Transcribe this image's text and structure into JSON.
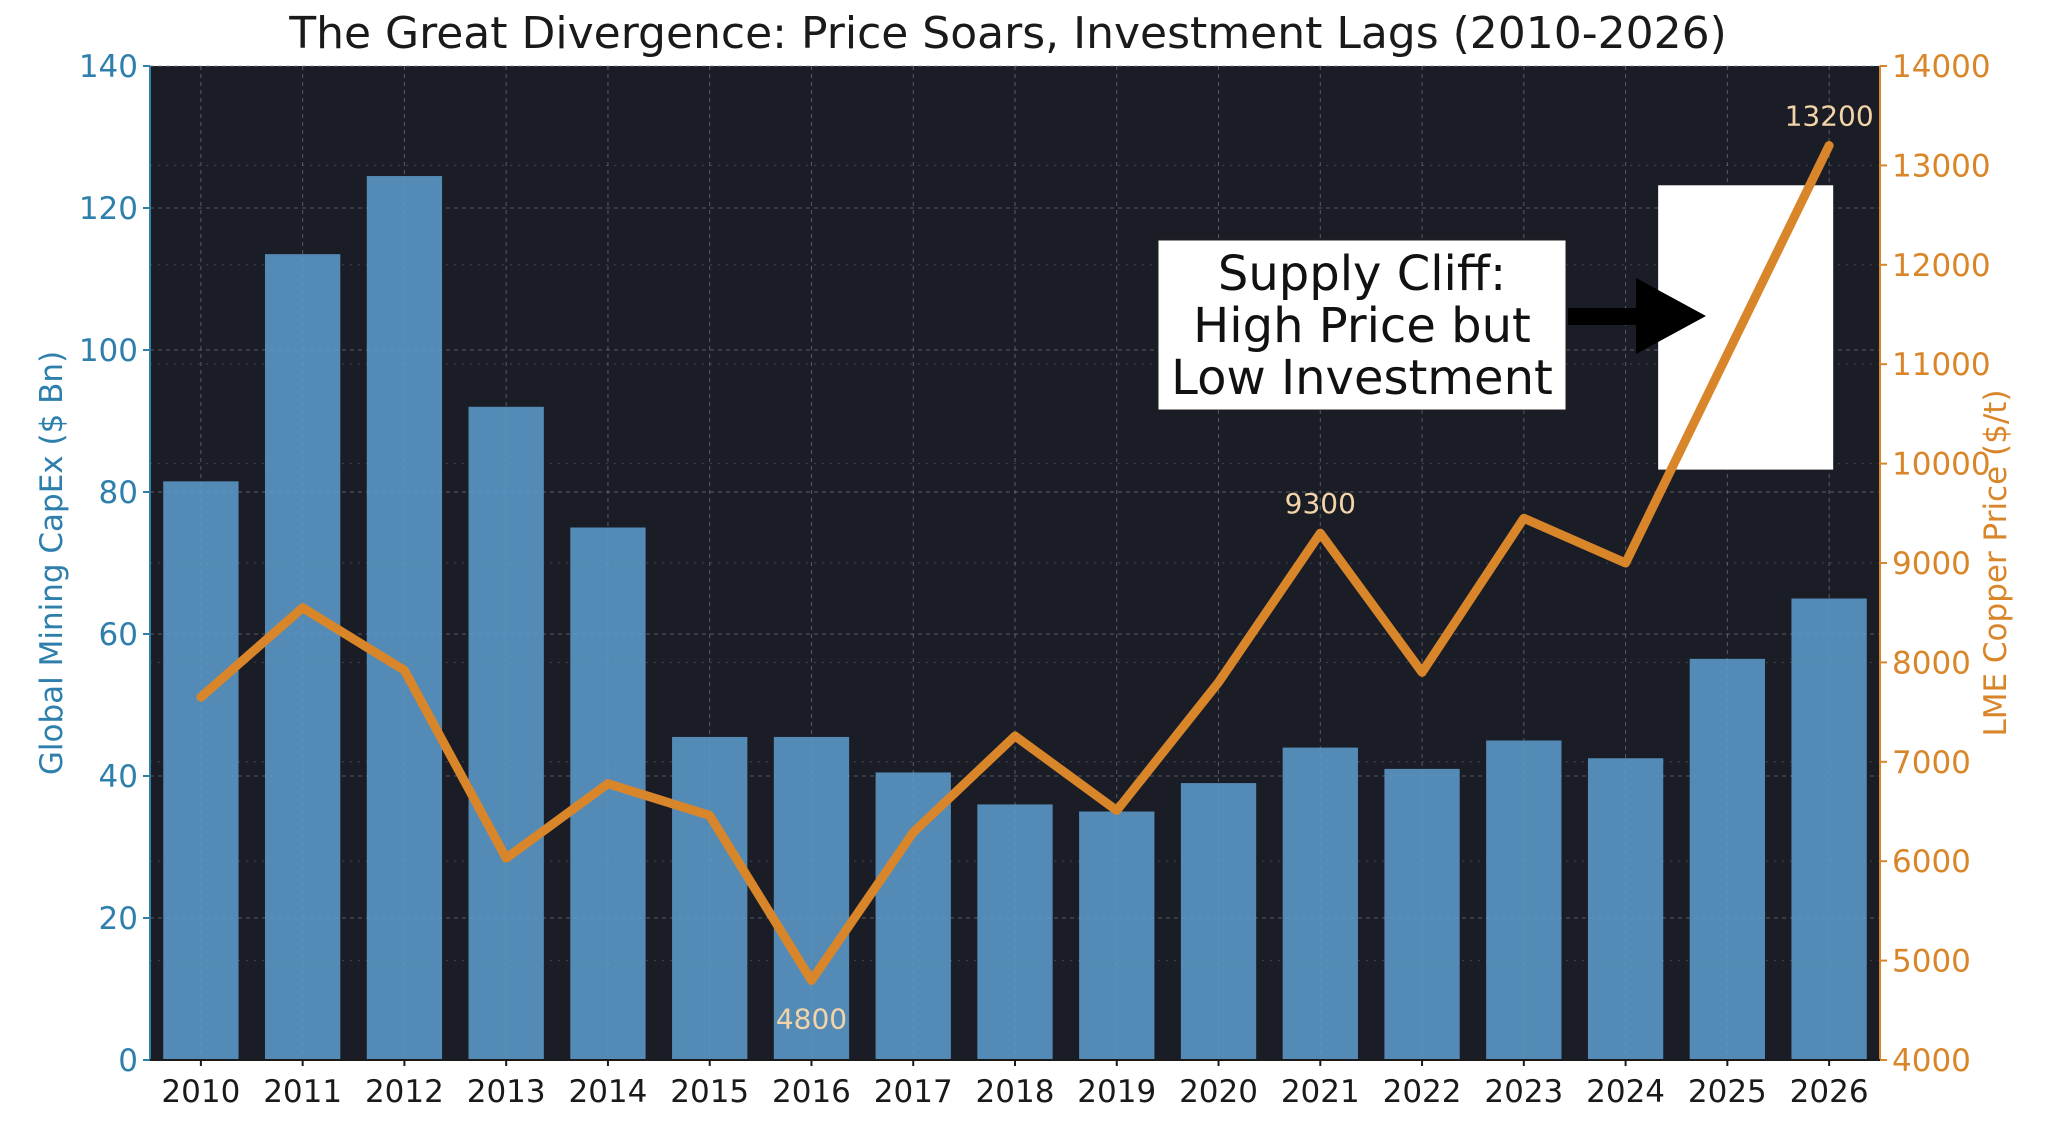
{
  "chart_data": {
    "type": "bar+line",
    "title": "The Great Divergence: Price Soars, Investment Lags (2010-2026)",
    "categories": [
      "2010",
      "2011",
      "2012",
      "2013",
      "2014",
      "2015",
      "2016",
      "2017",
      "2018",
      "2019",
      "2020",
      "2021",
      "2022",
      "2023",
      "2024",
      "2025",
      "2026"
    ],
    "series": [
      {
        "name": "Global Mining CapEx ($ Bn)",
        "type": "bar",
        "axis": "left",
        "color": "#5b9bcb",
        "values": [
          81.5,
          113.5,
          124.5,
          92,
          75,
          45.5,
          45.5,
          40.5,
          36,
          35,
          39,
          44,
          41,
          45,
          42.5,
          56.5,
          65
        ]
      },
      {
        "name": "LME Copper Price ($/t)",
        "type": "line",
        "axis": "right",
        "color": "#d9862a",
        "values": [
          7650,
          8550,
          7920,
          6030,
          6780,
          6460,
          4800,
          6290,
          7260,
          6510,
          7800,
          9300,
          7900,
          9450,
          9000,
          11100,
          13200
        ]
      }
    ],
    "ylabel_left": "Global Mining CapEx ($ Bn)",
    "ylim_left": [
      0,
      140
    ],
    "yticks_left": [
      "0",
      "20",
      "40",
      "60",
      "80",
      "100",
      "120",
      "140"
    ],
    "ylabel_right": "LME Copper Price ($/t)",
    "ylim_right": [
      4000,
      14000
    ],
    "yticks_right": [
      "4000",
      "5000",
      "6000",
      "7000",
      "8000",
      "9000",
      "10000",
      "11000",
      "12000",
      "13000",
      "14000"
    ],
    "grid": true,
    "point_labels": [
      {
        "index": 6,
        "text": "4800"
      },
      {
        "index": 11,
        "text": "9300"
      },
      {
        "index": 16,
        "text": "13200"
      }
    ],
    "annotation": {
      "lines": [
        "Supply Cliff:",
        "High Price but",
        "Low Investment"
      ],
      "highlight_start": "2025",
      "highlight_end": "2026"
    },
    "colors": {
      "plot_background": "#1b1d26",
      "grid": "#8a8c95",
      "bar": "#5b9bcb",
      "line": "#d9862a",
      "left_axis": "#2f7fad",
      "right_axis": "#d9862a"
    }
  }
}
